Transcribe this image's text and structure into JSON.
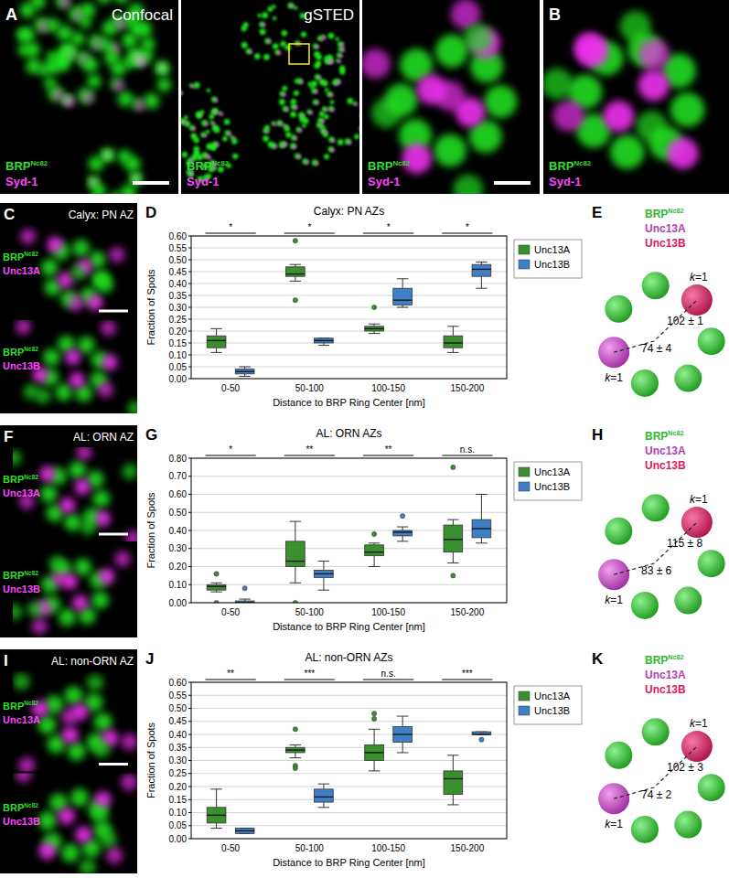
{
  "figure": {
    "panels": [
      {
        "letter": "A",
        "images": [
          {
            "title": "Confocal",
            "channels": [
              {
                "name": "BRP",
                "sup": "Nc82",
                "color": "#33dd33"
              },
              {
                "name": "Syd-1",
                "color": "#ff44ff"
              }
            ]
          },
          {
            "title": "gSTED",
            "channels": [
              {
                "name": "BRP",
                "sup": "Nc82",
                "color": "#33dd33"
              },
              {
                "name": "Syd-1",
                "color": "#ff44ff"
              }
            ]
          },
          {
            "channels": [
              {
                "name": "BRP",
                "sup": "Nc82",
                "color": "#33dd33"
              },
              {
                "name": "Syd-1",
                "color": "#ff44ff"
              }
            ]
          }
        ]
      },
      {
        "letter": "B",
        "images": [
          {
            "channels": [
              {
                "name": "BRP",
                "sup": "Nc82",
                "color": "#33dd33"
              },
              {
                "name": "Syd-1",
                "color": "#ff44ff"
              }
            ]
          }
        ]
      },
      {
        "letter": "C",
        "title": "Calyx: PN AZ",
        "images": [
          {
            "channels": [
              {
                "name": "BRP",
                "sup": "Nc82",
                "color": "#33dd33"
              },
              {
                "name": "Unc13A",
                "color": "#ff44ff"
              }
            ]
          },
          {
            "channels": [
              {
                "name": "BRP",
                "sup": "Nc82",
                "color": "#33dd33"
              },
              {
                "name": "Unc13B",
                "color": "#ff44ff"
              }
            ]
          }
        ]
      },
      {
        "letter": "F",
        "title": "AL: ORN AZ",
        "images": [
          {
            "channels": [
              {
                "name": "BRP",
                "sup": "Nc82",
                "color": "#33dd33"
              },
              {
                "name": "Unc13A",
                "color": "#ff44ff"
              }
            ]
          },
          {
            "channels": [
              {
                "name": "BRP",
                "sup": "Nc82",
                "color": "#33dd33"
              },
              {
                "name": "Unc13B",
                "color": "#ff44ff"
              }
            ]
          }
        ]
      },
      {
        "letter": "I",
        "title": "AL: non-ORN AZ",
        "images": [
          {
            "channels": [
              {
                "name": "BRP",
                "sup": "Nc82",
                "color": "#33dd33"
              },
              {
                "name": "Unc13A",
                "color": "#ff44ff"
              }
            ]
          },
          {
            "channels": [
              {
                "name": "BRP",
                "sup": "Nc82",
                "color": "#33dd33"
              },
              {
                "name": "Unc13B",
                "color": "#ff44ff"
              }
            ]
          }
        ]
      }
    ],
    "chart_panels": [
      "D",
      "G",
      "J"
    ],
    "diagrams": [
      {
        "letter": "E",
        "legend": [
          {
            "name": "BRP",
            "sup": "Nc82",
            "color": "#2fb82f"
          },
          {
            "name": "Unc13A",
            "color": "#b23fb2"
          },
          {
            "name": "Unc13B",
            "color": "#d81b60"
          }
        ],
        "k_label": {
          "italic": "k",
          "text": "=1"
        },
        "distance_b": "102 ± 1",
        "distance_a": "74 ± 4"
      },
      {
        "letter": "H",
        "legend": [
          {
            "name": "BRP",
            "sup": "Nc82",
            "color": "#2fb82f"
          },
          {
            "name": "Unc13A",
            "color": "#b23fb2"
          },
          {
            "name": "Unc13B",
            "color": "#d81b60"
          }
        ],
        "k_label": {
          "italic": "k",
          "text": "=1"
        },
        "distance_b": "115 ± 8",
        "distance_a": "83 ± 6"
      },
      {
        "letter": "K",
        "legend": [
          {
            "name": "BRP",
            "sup": "Nc82",
            "color": "#2fb82f"
          },
          {
            "name": "Unc13A",
            "color": "#b23fb2"
          },
          {
            "name": "Unc13B",
            "color": "#d81b60"
          }
        ],
        "k_label": {
          "italic": "k",
          "text": "=1"
        },
        "distance_b": "102 ± 3",
        "distance_a": "74 ± 2"
      }
    ]
  },
  "chart_data": [
    {
      "type": "box",
      "title": "Calyx: PN AZs",
      "x_label": "Distance to BRP Ring Center [nm]",
      "y_label": "Fraction of Spots",
      "categories": [
        "0-50",
        "50-100",
        "100-150",
        "150-200"
      ],
      "series": [
        {
          "name": "Unc13A",
          "color": "#3a8f2e",
          "boxes": [
            {
              "whislo": 0.11,
              "q1": 0.13,
              "med": 0.16,
              "q3": 0.18,
              "whishi": 0.21,
              "fliers": []
            },
            {
              "whislo": 0.41,
              "q1": 0.43,
              "med": 0.44,
              "q3": 0.47,
              "whishi": 0.48,
              "fliers": [
                0.58,
                0.33
              ]
            },
            {
              "whislo": 0.19,
              "q1": 0.2,
              "med": 0.21,
              "q3": 0.22,
              "whishi": 0.23,
              "fliers": [
                0.3
              ]
            },
            {
              "whislo": 0.11,
              "q1": 0.13,
              "med": 0.15,
              "q3": 0.18,
              "whishi": 0.22,
              "fliers": []
            }
          ]
        },
        {
          "name": "Unc13B",
          "color": "#3f7fc6",
          "boxes": [
            {
              "whislo": 0.01,
              "q1": 0.02,
              "med": 0.03,
              "q3": 0.04,
              "whishi": 0.05,
              "fliers": []
            },
            {
              "whislo": 0.14,
              "q1": 0.15,
              "med": 0.16,
              "q3": 0.17,
              "whishi": 0.17,
              "fliers": []
            },
            {
              "whislo": 0.3,
              "q1": 0.31,
              "med": 0.33,
              "q3": 0.38,
              "whishi": 0.42,
              "fliers": []
            },
            {
              "whislo": 0.38,
              "q1": 0.43,
              "med": 0.46,
              "q3": 0.48,
              "whishi": 0.49,
              "fliers": []
            }
          ]
        }
      ],
      "ylim": [
        0,
        0.6
      ],
      "yticks": [
        {
          "value": 0,
          "label": "0.00"
        },
        {
          "value": 0.05,
          "label": "0.05"
        },
        {
          "value": 0.1,
          "label": "0.10"
        },
        {
          "value": 0.15,
          "label": "0.15"
        },
        {
          "value": 0.2,
          "label": "0.20"
        },
        {
          "value": 0.25,
          "label": "0.25"
        },
        {
          "value": 0.3,
          "label": "0.30"
        },
        {
          "value": 0.35,
          "label": "0.35"
        },
        {
          "value": 0.4,
          "label": "0.40"
        },
        {
          "value": 0.45,
          "label": "0.45"
        },
        {
          "value": 0.5,
          "label": "0.50"
        },
        {
          "value": 0.55,
          "label": "0.55"
        },
        {
          "value": 0.6,
          "label": "0.60"
        }
      ],
      "grid": true,
      "legend": "right",
      "annotations": [
        "*",
        "*",
        "*",
        "*"
      ]
    },
    {
      "type": "box",
      "title": "AL: ORN AZs",
      "x_label": "Distance to BRP Ring Center [nm]",
      "y_label": "Fraction of Spots",
      "categories": [
        "0-50",
        "50-100",
        "100-150",
        "150-200"
      ],
      "series": [
        {
          "name": "Unc13A",
          "color": "#3a8f2e",
          "boxes": [
            {
              "whislo": 0.06,
              "q1": 0.07,
              "med": 0.09,
              "q3": 0.1,
              "whishi": 0.11,
              "fliers": [
                0.16,
                0
              ]
            },
            {
              "whislo": 0.11,
              "q1": 0.2,
              "med": 0.23,
              "q3": 0.34,
              "whishi": 0.45,
              "fliers": [
                0
              ]
            },
            {
              "whislo": 0.2,
              "q1": 0.26,
              "med": 0.28,
              "q3": 0.32,
              "whishi": 0.33,
              "fliers": [
                0.38
              ]
            },
            {
              "whislo": 0.22,
              "q1": 0.28,
              "med": 0.35,
              "q3": 0.43,
              "whishi": 0.46,
              "fliers": [
                0.75,
                0.15
              ]
            }
          ]
        },
        {
          "name": "Unc13B",
          "color": "#3f7fc6",
          "boxes": [
            {
              "whislo": 0,
              "q1": 0,
              "med": 0,
              "q3": 0.01,
              "whishi": 0.02,
              "fliers": [
                0.08
              ]
            },
            {
              "whislo": 0.07,
              "q1": 0.14,
              "med": 0.16,
              "q3": 0.18,
              "whishi": 0.23,
              "fliers": []
            },
            {
              "whislo": 0.34,
              "q1": 0.37,
              "med": 0.39,
              "q3": 0.4,
              "whishi": 0.42,
              "fliers": [
                0.48
              ]
            },
            {
              "whislo": 0.33,
              "q1": 0.36,
              "med": 0.41,
              "q3": 0.46,
              "whishi": 0.6,
              "fliers": []
            }
          ]
        }
      ],
      "ylim": [
        0,
        0.8
      ],
      "yticks": [
        {
          "value": 0,
          "label": "0.00"
        },
        {
          "value": 0.1,
          "label": "0.10"
        },
        {
          "value": 0.2,
          "label": "0.20"
        },
        {
          "value": 0.3,
          "label": "0.30"
        },
        {
          "value": 0.4,
          "label": "0.40"
        },
        {
          "value": 0.5,
          "label": "0.50"
        },
        {
          "value": 0.6,
          "label": "0.60"
        },
        {
          "value": 0.7,
          "label": "0.70"
        },
        {
          "value": 0.8,
          "label": "0.80"
        }
      ],
      "grid": true,
      "legend": "right",
      "annotations": [
        "*",
        "**",
        "**",
        "n.s."
      ]
    },
    {
      "type": "box",
      "title": "AL: non-ORN AZs",
      "x_label": "Distance to BRP Ring Center [nm]",
      "y_label": "Fraction of Spots",
      "categories": [
        "0-50",
        "50-100",
        "100-150",
        "150-200"
      ],
      "series": [
        {
          "name": "Unc13A",
          "color": "#3a8f2e",
          "boxes": [
            {
              "whislo": 0.04,
              "q1": 0.06,
              "med": 0.09,
              "q3": 0.12,
              "whishi": 0.19,
              "fliers": []
            },
            {
              "whislo": 0.31,
              "q1": 0.33,
              "med": 0.34,
              "q3": 0.35,
              "whishi": 0.36,
              "fliers": [
                0.42,
                0.28,
                0.27
              ]
            },
            {
              "whislo": 0.26,
              "q1": 0.3,
              "med": 0.33,
              "q3": 0.36,
              "whishi": 0.42,
              "fliers": [
                0.46,
                0.48
              ]
            },
            {
              "whislo": 0.13,
              "q1": 0.17,
              "med": 0.23,
              "q3": 0.26,
              "whishi": 0.32,
              "fliers": []
            }
          ]
        },
        {
          "name": "Unc13B",
          "color": "#3f7fc6",
          "boxes": [
            {
              "whislo": 0.02,
              "q1": 0.02,
              "med": 0.03,
              "q3": 0.04,
              "whishi": 0.04,
              "fliers": []
            },
            {
              "whislo": 0.12,
              "q1": 0.14,
              "med": 0.16,
              "q3": 0.19,
              "whishi": 0.21,
              "fliers": []
            },
            {
              "whislo": 0.33,
              "q1": 0.37,
              "med": 0.4,
              "q3": 0.43,
              "whishi": 0.47,
              "fliers": []
            },
            {
              "whislo": 0.4,
              "q1": 0.4,
              "med": 0.4,
              "q3": 0.41,
              "whishi": 0.41,
              "fliers": [
                0.38
              ]
            }
          ]
        }
      ],
      "ylim": [
        0,
        0.6
      ],
      "yticks": [
        {
          "value": 0,
          "label": "0.00"
        },
        {
          "value": 0.05,
          "label": "0.05"
        },
        {
          "value": 0.1,
          "label": "0.10"
        },
        {
          "value": 0.15,
          "label": "0.15"
        },
        {
          "value": 0.2,
          "label": "0.20"
        },
        {
          "value": 0.25,
          "label": "0.25"
        },
        {
          "value": 0.3,
          "label": "0.30"
        },
        {
          "value": 0.35,
          "label": "0.35"
        },
        {
          "value": 0.4,
          "label": "0.40"
        },
        {
          "value": 0.45,
          "label": "0.45"
        },
        {
          "value": 0.5,
          "label": "0.50"
        },
        {
          "value": 0.55,
          "label": "0.55"
        },
        {
          "value": 0.6,
          "label": "0.60"
        }
      ],
      "grid": true,
      "legend": "right",
      "annotations": [
        "**",
        "***",
        "n.s.",
        "***"
      ]
    }
  ]
}
